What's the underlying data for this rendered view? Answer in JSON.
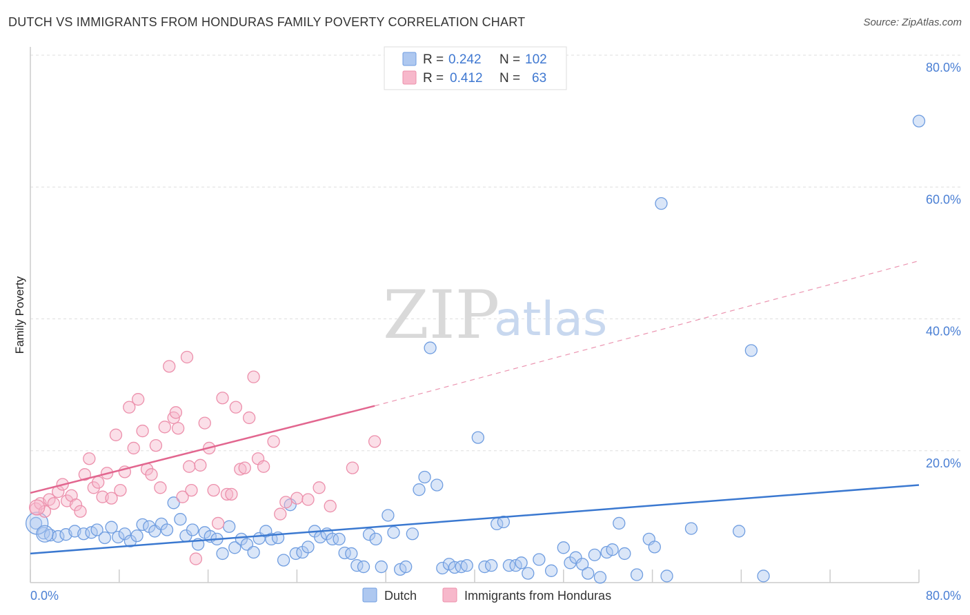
{
  "title": "DUTCH VS IMMIGRANTS FROM HONDURAS FAMILY POVERTY CORRELATION CHART",
  "source": "Source: ZipAtlas.com",
  "watermark": {
    "zip": "ZIP",
    "atlas": "atlas"
  },
  "colors": {
    "dutch_fill": "#aec8f0",
    "dutch_stroke": "#6f9de0",
    "dutch_line": "#3a78d0",
    "hond_fill": "#f7b8cb",
    "hond_stroke": "#ec8fab",
    "hond_line": "#e2668f",
    "grid": "#dddddd",
    "axis_text": "#4a7fd4"
  },
  "legend": {
    "rows": [
      {
        "r_label": "R =",
        "r_value": "0.242",
        "n_label": "N =",
        "n_value": "102"
      },
      {
        "r_label": "R =",
        "r_value": "0.412",
        "n_label": "N =",
        "n_value": "63"
      }
    ]
  },
  "chart_data": {
    "type": "scatter",
    "ylabel": "Family Poverty",
    "xlim": [
      0,
      80
    ],
    "ylim": [
      0,
      80
    ],
    "x_tick_labels": [
      "0.0%",
      "80.0%"
    ],
    "y_ticks": [
      20,
      40,
      60,
      80
    ],
    "y_tick_labels": [
      "20.0%",
      "40.0%",
      "60.0%",
      "80.0%"
    ],
    "series": [
      {
        "name": "Dutch",
        "R": 0.242,
        "N": 102,
        "trend": {
          "x": [
            0,
            80
          ],
          "y": [
            4.4,
            14.8
          ],
          "dashed_to": null
        },
        "points": [
          [
            0.5,
            9.0
          ],
          [
            1.2,
            7.5
          ],
          [
            1.8,
            7.2
          ],
          [
            2.5,
            7.0
          ],
          [
            3.2,
            7.3
          ],
          [
            4.0,
            7.8
          ],
          [
            4.8,
            7.4
          ],
          [
            5.5,
            7.6
          ],
          [
            6.0,
            8.0
          ],
          [
            6.7,
            6.8
          ],
          [
            7.3,
            8.4
          ],
          [
            7.9,
            6.9
          ],
          [
            8.5,
            7.4
          ],
          [
            9.0,
            6.3
          ],
          [
            9.6,
            7.1
          ],
          [
            10.1,
            8.8
          ],
          [
            10.7,
            8.5
          ],
          [
            11.2,
            7.8
          ],
          [
            11.8,
            8.9
          ],
          [
            12.3,
            8.0
          ],
          [
            12.9,
            12.1
          ],
          [
            13.5,
            9.6
          ],
          [
            14.0,
            7.1
          ],
          [
            14.6,
            8.0
          ],
          [
            15.1,
            5.8
          ],
          [
            15.7,
            7.6
          ],
          [
            16.2,
            7.0
          ],
          [
            16.8,
            6.6
          ],
          [
            17.3,
            4.4
          ],
          [
            17.9,
            8.5
          ],
          [
            18.4,
            5.3
          ],
          [
            19.0,
            6.6
          ],
          [
            19.5,
            5.8
          ],
          [
            20.1,
            4.6
          ],
          [
            20.6,
            6.7
          ],
          [
            21.2,
            7.8
          ],
          [
            21.7,
            6.6
          ],
          [
            22.3,
            6.8
          ],
          [
            22.8,
            3.4
          ],
          [
            23.4,
            11.8
          ],
          [
            23.9,
            4.4
          ],
          [
            24.5,
            4.6
          ],
          [
            25.0,
            5.4
          ],
          [
            25.6,
            7.8
          ],
          [
            26.1,
            6.9
          ],
          [
            26.7,
            7.4
          ],
          [
            27.2,
            6.6
          ],
          [
            27.8,
            6.6
          ],
          [
            28.3,
            4.5
          ],
          [
            28.9,
            4.4
          ],
          [
            29.4,
            2.6
          ],
          [
            30.0,
            2.4
          ],
          [
            30.5,
            7.3
          ],
          [
            31.1,
            6.6
          ],
          [
            31.6,
            2.4
          ],
          [
            32.2,
            10.2
          ],
          [
            32.7,
            7.6
          ],
          [
            33.3,
            2.0
          ],
          [
            33.8,
            2.4
          ],
          [
            34.4,
            7.4
          ],
          [
            35.0,
            14.1
          ],
          [
            35.5,
            16.0
          ],
          [
            36.0,
            35.6
          ],
          [
            36.6,
            14.8
          ],
          [
            37.1,
            2.2
          ],
          [
            37.7,
            2.8
          ],
          [
            38.2,
            2.3
          ],
          [
            38.8,
            2.4
          ],
          [
            39.3,
            2.6
          ],
          [
            40.3,
            22.0
          ],
          [
            40.9,
            2.4
          ],
          [
            41.5,
            2.6
          ],
          [
            42.0,
            8.9
          ],
          [
            42.6,
            9.2
          ],
          [
            43.1,
            2.6
          ],
          [
            43.7,
            2.6
          ],
          [
            44.2,
            3.0
          ],
          [
            44.8,
            1.4
          ],
          [
            45.8,
            3.5
          ],
          [
            46.9,
            1.8
          ],
          [
            48.0,
            5.3
          ],
          [
            48.6,
            3.0
          ],
          [
            49.1,
            3.8
          ],
          [
            49.7,
            2.8
          ],
          [
            50.2,
            1.4
          ],
          [
            50.8,
            4.2
          ],
          [
            51.3,
            0.8
          ],
          [
            51.9,
            4.6
          ],
          [
            52.4,
            5.0
          ],
          [
            53.0,
            9.0
          ],
          [
            53.5,
            4.4
          ],
          [
            54.6,
            1.2
          ],
          [
            55.7,
            6.6
          ],
          [
            56.2,
            5.4
          ],
          [
            56.8,
            57.5
          ],
          [
            57.3,
            1.0
          ],
          [
            59.5,
            8.2
          ],
          [
            63.8,
            7.8
          ],
          [
            64.9,
            35.2
          ],
          [
            66.0,
            1.0
          ],
          [
            80.0,
            70.0
          ]
        ]
      },
      {
        "name": "Immigrants from Honduras",
        "R": 0.412,
        "N": 63,
        "trend": {
          "x": [
            0,
            31
          ],
          "y": [
            13.6,
            26.8
          ],
          "dashed_to": {
            "x": 80,
            "y": 48.8
          }
        },
        "points": [
          [
            0.5,
            11.2
          ],
          [
            0.9,
            12.0
          ],
          [
            1.3,
            10.8
          ],
          [
            1.7,
            12.6
          ],
          [
            2.1,
            12.0
          ],
          [
            2.5,
            13.8
          ],
          [
            2.9,
            14.9
          ],
          [
            3.3,
            12.4
          ],
          [
            3.7,
            13.2
          ],
          [
            4.1,
            11.8
          ],
          [
            4.5,
            10.8
          ],
          [
            4.9,
            16.4
          ],
          [
            5.3,
            18.8
          ],
          [
            5.7,
            14.4
          ],
          [
            6.1,
            15.2
          ],
          [
            6.5,
            13.0
          ],
          [
            6.9,
            16.6
          ],
          [
            7.3,
            12.8
          ],
          [
            7.7,
            22.4
          ],
          [
            8.1,
            14.0
          ],
          [
            8.5,
            16.8
          ],
          [
            8.9,
            26.6
          ],
          [
            9.3,
            20.4
          ],
          [
            9.7,
            27.8
          ],
          [
            10.1,
            23.0
          ],
          [
            10.5,
            17.2
          ],
          [
            10.9,
            16.4
          ],
          [
            11.3,
            20.8
          ],
          [
            11.7,
            14.4
          ],
          [
            12.1,
            23.6
          ],
          [
            12.5,
            32.8
          ],
          [
            12.9,
            25.0
          ],
          [
            13.3,
            23.4
          ],
          [
            13.7,
            13.0
          ],
          [
            14.1,
            34.2
          ],
          [
            14.5,
            14.0
          ],
          [
            14.9,
            3.6
          ],
          [
            15.3,
            17.8
          ],
          [
            15.7,
            24.2
          ],
          [
            16.1,
            20.4
          ],
          [
            16.5,
            14.0
          ],
          [
            16.9,
            9.0
          ],
          [
            17.3,
            28.0
          ],
          [
            17.7,
            13.4
          ],
          [
            18.1,
            13.4
          ],
          [
            18.5,
            26.6
          ],
          [
            18.9,
            17.2
          ],
          [
            19.3,
            17.4
          ],
          [
            19.7,
            25.0
          ],
          [
            20.1,
            31.2
          ],
          [
            20.5,
            18.8
          ],
          [
            21.0,
            17.6
          ],
          [
            21.9,
            21.4
          ],
          [
            22.5,
            10.4
          ],
          [
            23.0,
            12.2
          ],
          [
            24.0,
            12.8
          ],
          [
            25.0,
            12.6
          ],
          [
            26.0,
            14.4
          ],
          [
            27.0,
            11.6
          ],
          [
            29.0,
            17.4
          ],
          [
            31.0,
            21.4
          ],
          [
            13.1,
            25.8
          ],
          [
            14.3,
            17.6
          ]
        ]
      }
    ]
  }
}
